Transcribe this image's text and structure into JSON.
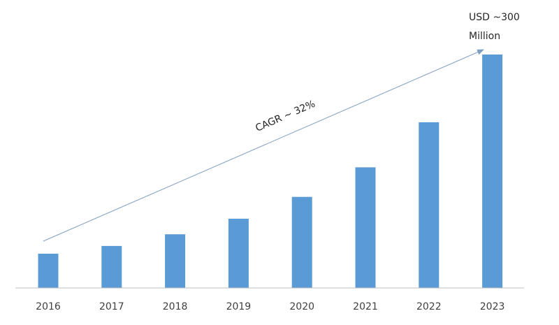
{
  "chart_data": {
    "type": "bar",
    "title": "",
    "xlabel": "",
    "ylabel": "",
    "categories": [
      "2016",
      "2017",
      "2018",
      "2019",
      "2020",
      "2021",
      "2022",
      "2023"
    ],
    "series": [
      {
        "values": [
          44,
          54,
          69,
          89,
          117,
          155,
          213,
          300
        ]
      }
    ],
    "ylim": [
      0,
      300
    ],
    "grid": false,
    "legend": "none",
    "bar_color": "#5b9bd5",
    "axis_color": "#bfbfbf",
    "annotations": {
      "cagr_label": "CAGR ~ 32%",
      "end_value_line1": "USD ~300",
      "end_value_line2": "Million",
      "arrow_color": "#7f9fc0"
    }
  }
}
